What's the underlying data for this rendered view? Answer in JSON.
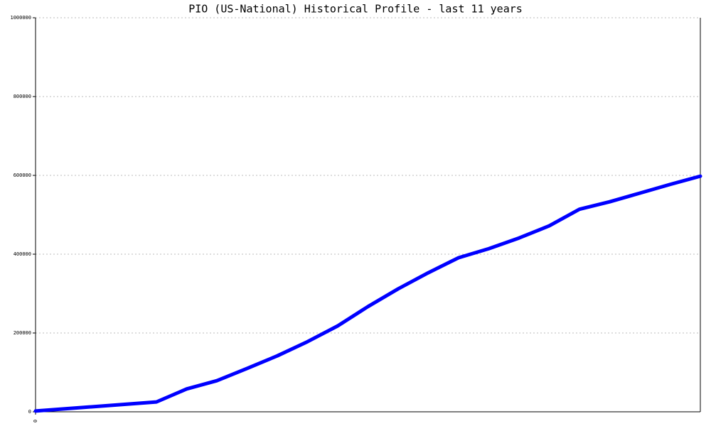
{
  "chart_data": {
    "type": "line",
    "title": "PIO (US-National) Historical Profile - last 11 years",
    "x": [
      0,
      4,
      5,
      6,
      7,
      8,
      9,
      10,
      11,
      12,
      13,
      14,
      15,
      16,
      17,
      18,
      19,
      20,
      21,
      22
    ],
    "series": [
      {
        "color": "#0000ff",
        "values": [
          2000,
          25000,
          58000,
          79000,
          110000,
          142000,
          178000,
          218000,
          267000,
          312000,
          353000,
          391000,
          414000,
          441000,
          472000,
          514000,
          533000,
          555000,
          577000,
          598000
        ]
      }
    ],
    "xlim": [
      0,
      22
    ],
    "xticks": [
      0
    ],
    "ylim": [
      0,
      1000000
    ],
    "yticks": [
      0,
      200000,
      400000,
      600000,
      800000,
      1000000
    ],
    "grid": true
  }
}
